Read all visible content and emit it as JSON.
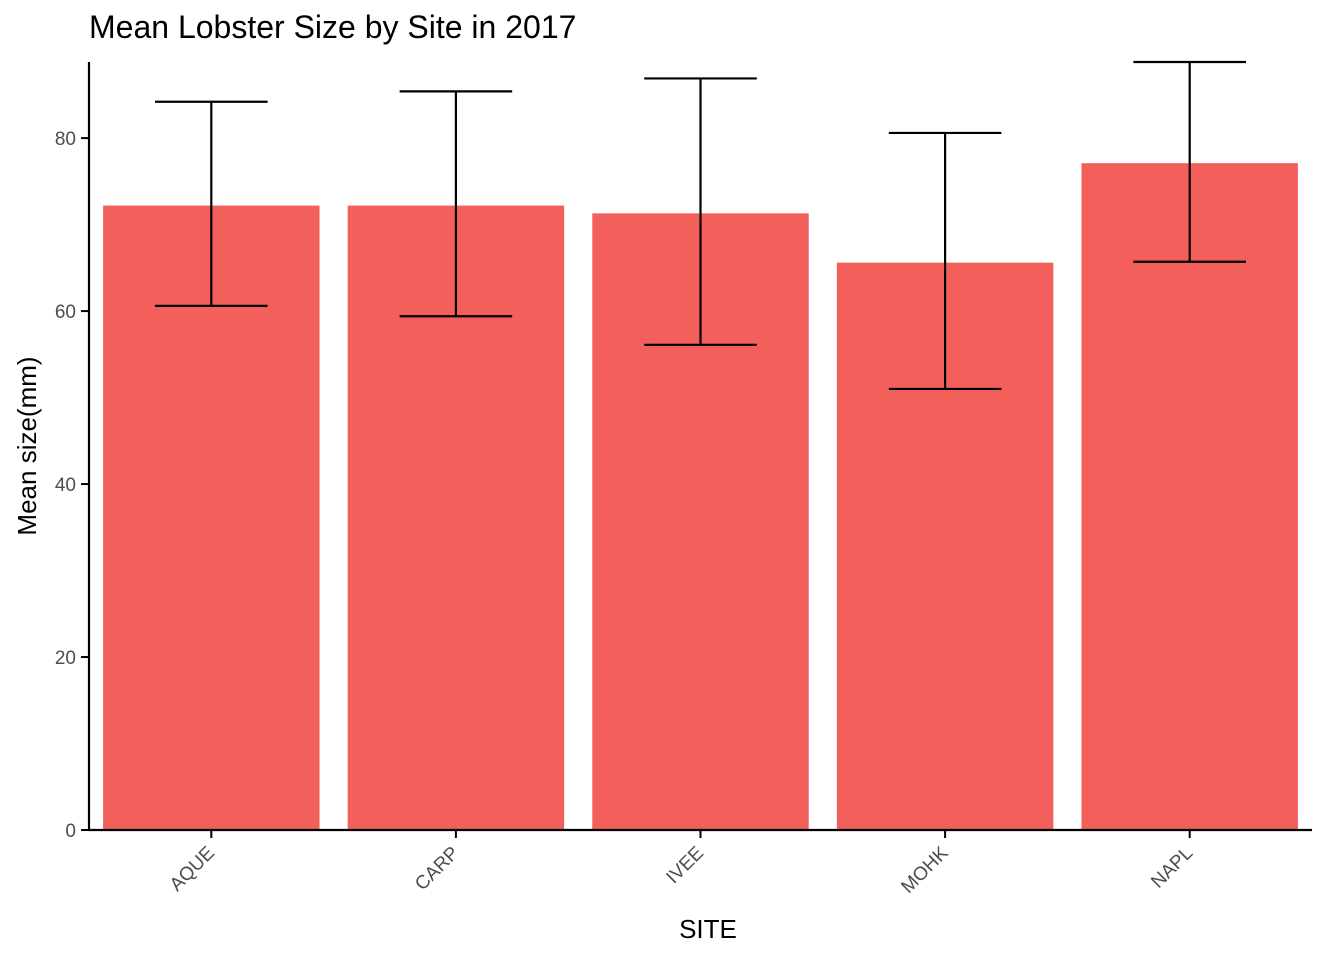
{
  "chart_data": {
    "type": "bar",
    "title": "Mean Lobster Size by Site in 2017",
    "xlabel": "SITE",
    "ylabel": "Mean size(mm)",
    "categories": [
      "AQUE",
      "CARP",
      "IVEE",
      "MOHK",
      "NAPL"
    ],
    "values": [
      72.2,
      72.2,
      71.3,
      65.6,
      77.1
    ],
    "error_lower": [
      60.6,
      59.4,
      56.1,
      51.0,
      65.7
    ],
    "error_upper": [
      84.2,
      85.4,
      86.9,
      80.6,
      88.8
    ],
    "ylim": [
      0,
      88.8
    ],
    "yticks": [
      0,
      20,
      40,
      60,
      80
    ],
    "grid": false,
    "bar_color": "#f3605c",
    "error_color": "#000000"
  }
}
